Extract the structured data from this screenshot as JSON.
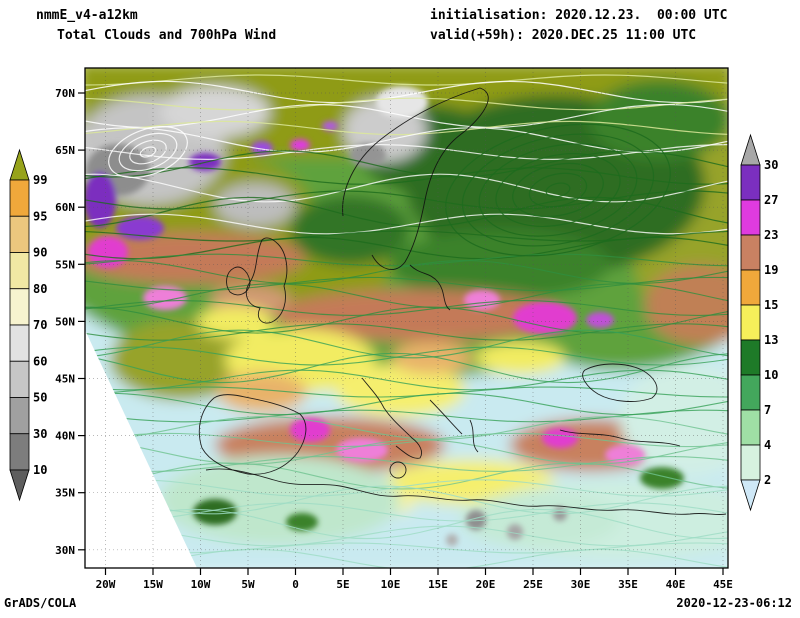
{
  "header": {
    "model": "nmmE_v4-a12km",
    "product": "Total Clouds and 700hPa Wind",
    "initialisation": "initialisation: 2020.12.23.  00:00 UTC",
    "valid": "valid(+59h): 2020.DEC.25 11:00 UTC"
  },
  "footer": {
    "credit": "GrADS/COLA",
    "timestamp": "2020-12-23-06:12"
  },
  "axes": {
    "x_ticks": [
      "20W",
      "15W",
      "10W",
      "5W",
      "0",
      "5E",
      "10E",
      "15E",
      "20E",
      "25E",
      "30E",
      "35E",
      "40E",
      "45E"
    ],
    "y_ticks": [
      "70N",
      "65N",
      "60N",
      "55N",
      "50N",
      "45N",
      "40N",
      "35N",
      "30N"
    ]
  },
  "colorbars": {
    "cloud_cover": {
      "labels": [
        "99",
        "95",
        "90",
        "80",
        "70",
        "60",
        "50",
        "30",
        "10"
      ],
      "colors": [
        "#97a31b",
        "#f0a83b",
        "#ecc77e",
        "#f1e8a4",
        "#f7f3cf",
        "#e2e2e2",
        "#c6c6c6",
        "#a0a0a0",
        "#7d7d7d",
        "#5e5e5e"
      ]
    },
    "wind_speed": {
      "labels": [
        "30",
        "27",
        "23",
        "19",
        "15",
        "13",
        "10",
        "7",
        "4",
        "2"
      ],
      "colors": [
        "#a8a8a8",
        "#7b2fbf",
        "#df3bdf",
        "#c98162",
        "#f0a83b",
        "#f6ef5a",
        "#1e7a28",
        "#43a75c",
        "#9fdfa5",
        "#d6f2df",
        "#cfe8f7"
      ]
    }
  }
}
